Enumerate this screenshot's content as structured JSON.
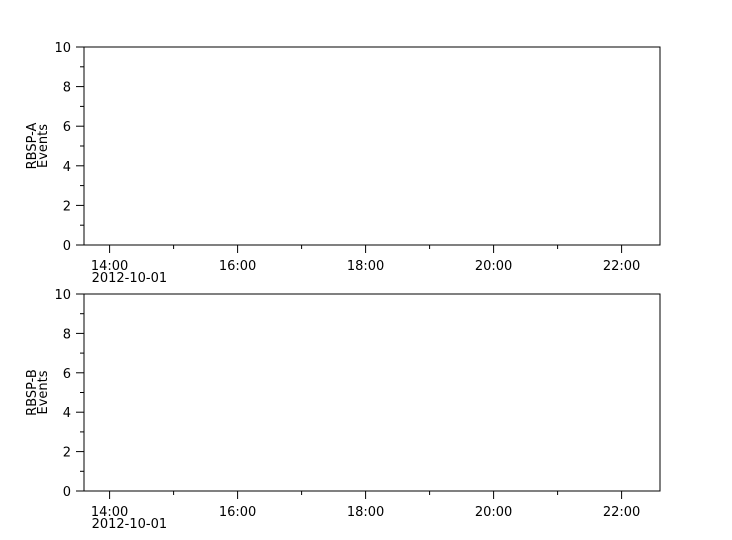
{
  "chart_data": [
    {
      "type": "line",
      "ylabel": [
        "RBSP-A",
        "Events"
      ],
      "ylim": [
        0,
        10
      ],
      "yticks": [
        "0",
        "2",
        "4",
        "6",
        "8",
        "10"
      ],
      "xticks": [
        "14:00",
        "16:00",
        "18:00",
        "20:00",
        "22:00"
      ],
      "xtick_date": "2012-10-01",
      "xlim": [
        "2012-10-01 13:36",
        "2012-10-01 22:36"
      ],
      "series": [],
      "grid": false
    },
    {
      "type": "line",
      "ylabel": [
        "RBSP-B",
        "Events"
      ],
      "ylim": [
        0,
        10
      ],
      "yticks": [
        "0",
        "2",
        "4",
        "6",
        "8",
        "10"
      ],
      "xticks": [
        "14:00",
        "16:00",
        "18:00",
        "20:00",
        "22:00"
      ],
      "xtick_date": "2012-10-01",
      "xlim": [
        "2012-10-01 13:36",
        "2012-10-01 22:36"
      ],
      "series": [],
      "grid": false
    }
  ]
}
